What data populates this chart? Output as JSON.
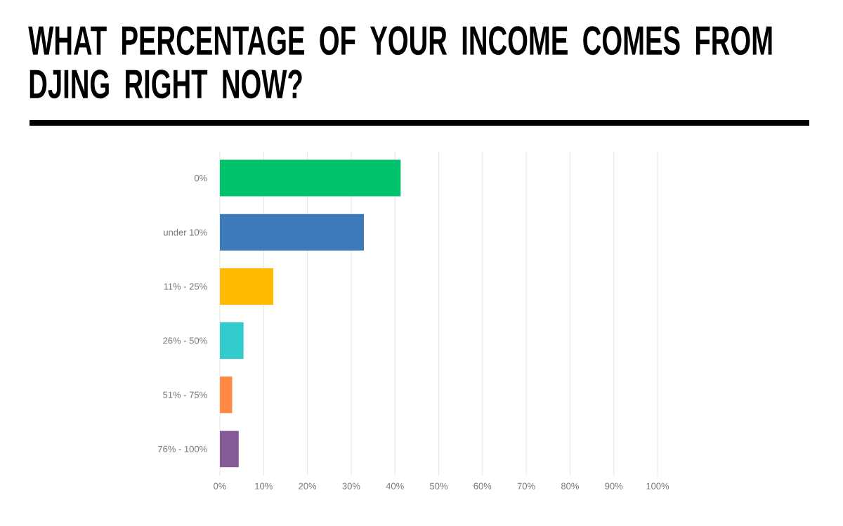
{
  "chart_data": {
    "type": "bar",
    "orientation": "horizontal",
    "title": "WHAT PERCENTAGE OF YOUR INCOME COMES FROM DJING RIGHT NOW?",
    "categories": [
      "0%",
      "under 10%",
      "11% - 25%",
      "26% - 50%",
      "51% - 75%",
      "76% - 100%"
    ],
    "values": [
      41.3,
      32.9,
      12.2,
      5.4,
      2.8,
      4.3
    ],
    "colors": [
      "#00c26a",
      "#3d7ab9",
      "#ffbb00",
      "#33cccc",
      "#ff8844",
      "#845b97"
    ],
    "xlim": [
      0,
      100
    ],
    "xticks": [
      {
        "value": 0,
        "label": "0%"
      },
      {
        "value": 10,
        "label": "10%"
      },
      {
        "value": 20,
        "label": "20%"
      },
      {
        "value": 30,
        "label": "30%"
      },
      {
        "value": 40,
        "label": "40%"
      },
      {
        "value": 50,
        "label": "50%"
      },
      {
        "value": 60,
        "label": "60%"
      },
      {
        "value": 70,
        "label": "70%"
      },
      {
        "value": 80,
        "label": "80%"
      },
      {
        "value": 90,
        "label": "90%"
      },
      {
        "value": 100,
        "label": "100%"
      }
    ],
    "grid": "x"
  }
}
